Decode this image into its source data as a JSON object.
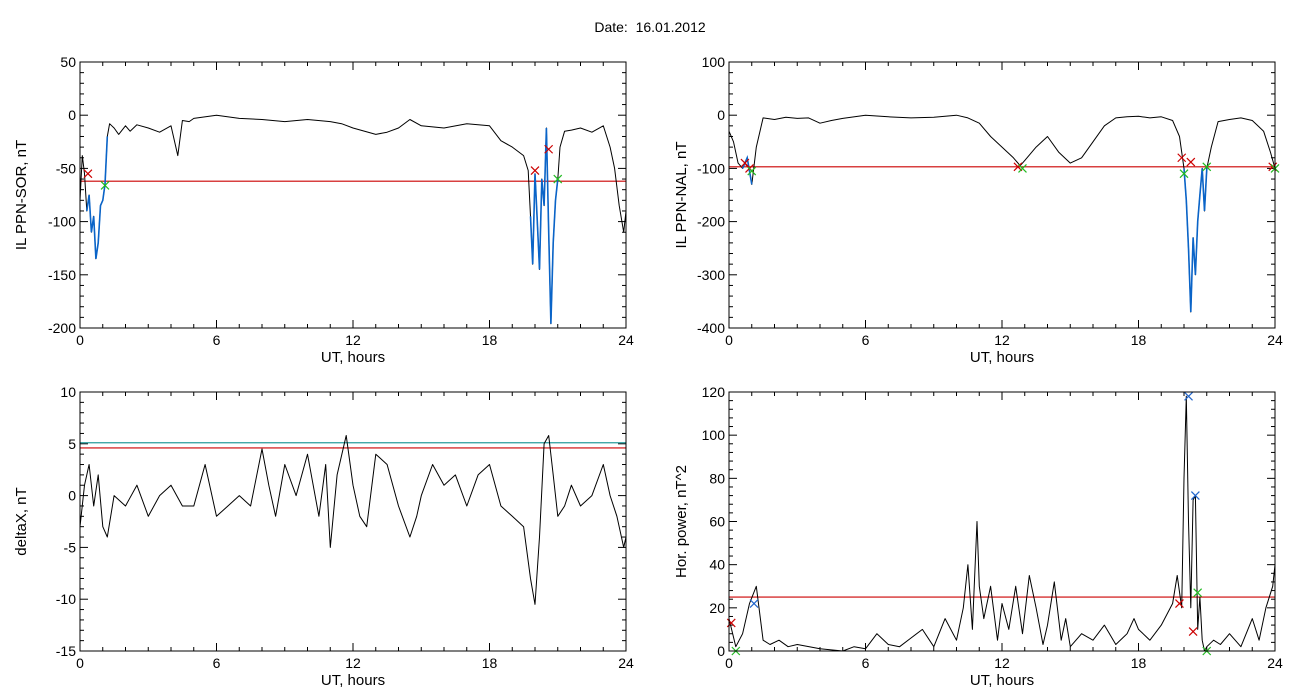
{
  "page": {
    "title": "Date:  16.01.2012"
  },
  "colors": {
    "trace": "#000000",
    "highlight": "#0a64c8",
    "threshold": "#cc0000",
    "cross_red": "#cc0000",
    "cross_green": "#22bb22",
    "cross_blue": "#2266cc",
    "line_teal": "#2a9d9d"
  },
  "chart_data": [
    {
      "id": "p1",
      "type": "line",
      "xlabel": "UT, hours",
      "ylabel": "IL PPN-SOR, nT",
      "xlim": [
        0,
        24
      ],
      "ylim": [
        -200,
        50
      ],
      "xticks": [
        0,
        6,
        12,
        18,
        24
      ],
      "yticks": [
        50,
        0,
        -50,
        -100,
        -150,
        -200
      ],
      "series": [
        {
          "x": [
            0,
            0.1,
            0.2,
            0.3,
            0.4,
            0.5,
            0.6,
            0.7,
            0.8,
            0.9,
            1.0,
            1.1,
            1.2,
            1.3,
            1.4,
            1.5,
            1.7,
            2.0,
            2.2,
            2.5,
            3.0,
            3.5,
            4.0,
            4.3,
            4.5,
            4.8,
            5.0,
            6.0,
            7.0,
            8.0,
            9.0,
            10.0,
            11.0,
            11.5,
            12.0,
            13.0,
            13.5,
            14.0,
            14.5,
            15.0,
            16.0,
            17.0,
            18.0,
            18.5,
            19.0,
            19.5,
            19.7,
            19.8,
            19.9,
            20.0,
            20.1,
            20.2,
            20.3,
            20.4,
            20.5,
            20.6,
            20.7,
            20.8,
            20.9,
            21.0,
            21.1,
            21.3,
            21.6,
            22.0,
            22.5,
            23.0,
            23.3,
            23.5,
            23.7,
            23.9,
            24.0
          ],
          "values": [
            -80,
            -38,
            -55,
            -90,
            -75,
            -110,
            -95,
            -135,
            -120,
            -85,
            -80,
            -65,
            -20,
            -8,
            -10,
            -12,
            -18,
            -10,
            -15,
            -9,
            -12,
            -16,
            -10,
            -38,
            -5,
            -6,
            -3,
            0,
            -3,
            -4,
            -6,
            -4,
            -6,
            -8,
            -12,
            -18,
            -16,
            -12,
            -4,
            -10,
            -12,
            -8,
            -10,
            -24,
            -30,
            -38,
            -52,
            -95,
            -140,
            -55,
            -100,
            -145,
            -60,
            -85,
            -12,
            -110,
            -196,
            -120,
            -80,
            -60,
            -30,
            -15,
            -14,
            -12,
            -16,
            -10,
            -30,
            -50,
            -85,
            -110,
            -90
          ]
        }
      ],
      "threshold": -62,
      "highlight_ranges": [
        [
          0.3,
          1.2
        ],
        [
          19.8,
          21.0
        ]
      ],
      "markers": [
        {
          "x": 0.35,
          "y": -55,
          "color": "red"
        },
        {
          "x": 1.1,
          "y": -66,
          "color": "green"
        },
        {
          "x": 20.0,
          "y": -52,
          "color": "red"
        },
        {
          "x": 20.6,
          "y": -32,
          "color": "red"
        },
        {
          "x": 21.0,
          "y": -60,
          "color": "green"
        }
      ]
    },
    {
      "id": "p2",
      "type": "line",
      "xlabel": "UT, hours",
      "ylabel": "IL PPN-NAL, nT",
      "xlim": [
        0,
        24
      ],
      "ylim": [
        -400,
        100
      ],
      "xticks": [
        0,
        6,
        12,
        18,
        24
      ],
      "yticks": [
        100,
        0,
        -100,
        -200,
        -300,
        -400
      ],
      "series": [
        {
          "x": [
            0,
            0.2,
            0.4,
            0.6,
            0.8,
            1.0,
            1.2,
            1.5,
            2.0,
            2.5,
            3.0,
            3.5,
            4.0,
            4.5,
            5.0,
            6.0,
            7.0,
            8.0,
            9.0,
            10.0,
            10.5,
            11.0,
            11.5,
            12.0,
            12.5,
            12.8,
            13.0,
            13.5,
            14.0,
            14.5,
            15.0,
            15.5,
            16.0,
            16.5,
            17.0,
            17.5,
            18.0,
            18.5,
            19.0,
            19.5,
            19.8,
            20.0,
            20.1,
            20.2,
            20.3,
            20.4,
            20.5,
            20.6,
            20.7,
            20.8,
            20.9,
            21.0,
            21.2,
            21.5,
            22.0,
            22.5,
            23.0,
            23.5,
            23.8,
            24.0
          ],
          "values": [
            -30,
            -50,
            -90,
            -100,
            -80,
            -130,
            -60,
            -5,
            -8,
            -4,
            -6,
            -5,
            -15,
            -10,
            -6,
            0,
            -3,
            -5,
            -4,
            0,
            -5,
            -15,
            -40,
            -60,
            -80,
            -95,
            -85,
            -60,
            -40,
            -70,
            -90,
            -80,
            -50,
            -20,
            -5,
            -3,
            -2,
            -5,
            -3,
            -10,
            -40,
            -100,
            -160,
            -250,
            -370,
            -230,
            -300,
            -200,
            -150,
            -100,
            -180,
            -100,
            -60,
            -12,
            -8,
            -5,
            -10,
            -30,
            -70,
            -100
          ]
        }
      ],
      "threshold": -97,
      "highlight_ranges": [
        [
          0.6,
          1.1
        ],
        [
          19.9,
          21.0
        ]
      ],
      "markers": [
        {
          "x": 0.7,
          "y": -90,
          "color": "red"
        },
        {
          "x": 0.9,
          "y": -100,
          "color": "red"
        },
        {
          "x": 1.0,
          "y": -105,
          "color": "green"
        },
        {
          "x": 12.7,
          "y": -97,
          "color": "red"
        },
        {
          "x": 12.9,
          "y": -100,
          "color": "green"
        },
        {
          "x": 19.9,
          "y": -80,
          "color": "red"
        },
        {
          "x": 20.0,
          "y": -110,
          "color": "green"
        },
        {
          "x": 20.3,
          "y": -88,
          "color": "red"
        },
        {
          "x": 21.0,
          "y": -97,
          "color": "green"
        },
        {
          "x": 23.9,
          "y": -97,
          "color": "red"
        },
        {
          "x": 24.0,
          "y": -100,
          "color": "green"
        }
      ]
    },
    {
      "id": "p3",
      "type": "line",
      "xlabel": "UT, hours",
      "ylabel": "deltaX, nT",
      "xlim": [
        0,
        24
      ],
      "ylim": [
        -15,
        10
      ],
      "xticks": [
        0,
        6,
        12,
        18,
        24
      ],
      "yticks": [
        10,
        5,
        0,
        -5,
        -10,
        -15
      ],
      "series": [
        {
          "x": [
            0,
            0.2,
            0.4,
            0.6,
            0.8,
            1.0,
            1.2,
            1.5,
            2.0,
            2.5,
            3.0,
            3.5,
            4.0,
            4.5,
            5.0,
            5.5,
            6.0,
            6.5,
            7.0,
            7.5,
            8.0,
            8.3,
            8.6,
            9.0,
            9.5,
            10.0,
            10.5,
            10.8,
            11.0,
            11.3,
            11.7,
            12.0,
            12.3,
            12.6,
            13.0,
            13.5,
            14.0,
            14.5,
            14.8,
            15.0,
            15.5,
            16.0,
            16.5,
            17.0,
            17.5,
            18.0,
            18.5,
            19.0,
            19.5,
            19.8,
            20.0,
            20.2,
            20.4,
            20.6,
            20.8,
            21.0,
            21.3,
            21.6,
            22.0,
            22.5,
            23.0,
            23.3,
            23.6,
            23.9,
            24.0
          ],
          "values": [
            -3,
            1,
            3,
            -1,
            2,
            -3,
            -4,
            0,
            -1,
            1,
            -2,
            0,
            1,
            -1,
            -1,
            3,
            -2,
            -1,
            0,
            -1,
            4.5,
            1,
            -2,
            3,
            0,
            4,
            -2,
            3,
            -5,
            2,
            5.8,
            1,
            -2,
            -3,
            4,
            3,
            -1,
            -4,
            -2,
            0,
            3,
            1,
            2,
            -1,
            2,
            3,
            -1,
            -2,
            -3,
            -8,
            -10.5,
            -4,
            5,
            5.8,
            2,
            -2,
            -1,
            1,
            -1,
            0,
            3,
            0,
            -2,
            -5,
            -4
          ]
        }
      ],
      "threshold": 4.6,
      "extra_line": 5.1,
      "highlight_ranges": [],
      "markers": []
    },
    {
      "id": "p4",
      "type": "line",
      "xlabel": "UT, hours",
      "ylabel": "Hor. power, nT^2",
      "xlim": [
        0,
        24
      ],
      "ylim": [
        0,
        120
      ],
      "xticks": [
        0,
        6,
        12,
        18,
        24
      ],
      "yticks": [
        0,
        20,
        40,
        60,
        80,
        100,
        120
      ],
      "series": [
        {
          "x": [
            0,
            0.3,
            0.6,
            0.9,
            1.2,
            1.5,
            1.8,
            2.2,
            2.6,
            3.0,
            4.0,
            5.0,
            5.5,
            6.0,
            6.5,
            7.0,
            7.5,
            8.0,
            8.5,
            9.0,
            9.5,
            10.0,
            10.3,
            10.5,
            10.7,
            10.9,
            11.0,
            11.2,
            11.5,
            11.8,
            12.0,
            12.3,
            12.6,
            12.9,
            13.2,
            13.5,
            13.8,
            14.0,
            14.3,
            14.6,
            14.8,
            15.0,
            15.5,
            16.0,
            16.5,
            17.0,
            17.5,
            17.8,
            18.0,
            18.5,
            19.0,
            19.5,
            19.7,
            19.9,
            20.0,
            20.1,
            20.2,
            20.3,
            20.4,
            20.5,
            20.6,
            20.7,
            20.8,
            20.9,
            21.0,
            21.3,
            21.6,
            22.0,
            22.5,
            23.0,
            23.3,
            23.6,
            23.9,
            24.0
          ],
          "values": [
            15,
            2,
            8,
            22,
            30,
            5,
            3,
            5,
            2,
            3,
            1,
            0,
            2,
            1,
            8,
            3,
            2,
            6,
            10,
            2,
            15,
            5,
            20,
            40,
            10,
            60,
            30,
            15,
            30,
            5,
            22,
            10,
            30,
            8,
            35,
            20,
            3,
            12,
            32,
            5,
            15,
            2,
            8,
            5,
            12,
            3,
            8,
            15,
            10,
            5,
            12,
            22,
            35,
            20,
            80,
            118,
            60,
            20,
            70,
            72,
            10,
            25,
            5,
            0,
            2,
            5,
            3,
            8,
            2,
            15,
            5,
            20,
            30,
            40
          ]
        }
      ],
      "threshold": 25,
      "highlight_ranges": [],
      "markers": [
        {
          "x": 0.1,
          "y": 13,
          "color": "red"
        },
        {
          "x": 0.3,
          "y": 0,
          "color": "green"
        },
        {
          "x": 1.1,
          "y": 22,
          "color": "blue"
        },
        {
          "x": 19.8,
          "y": 22,
          "color": "red"
        },
        {
          "x": 20.2,
          "y": 118,
          "color": "blue"
        },
        {
          "x": 20.5,
          "y": 72,
          "color": "blue"
        },
        {
          "x": 20.4,
          "y": 9,
          "color": "red"
        },
        {
          "x": 20.6,
          "y": 27,
          "color": "green"
        },
        {
          "x": 21.0,
          "y": 0,
          "color": "green"
        }
      ]
    }
  ]
}
